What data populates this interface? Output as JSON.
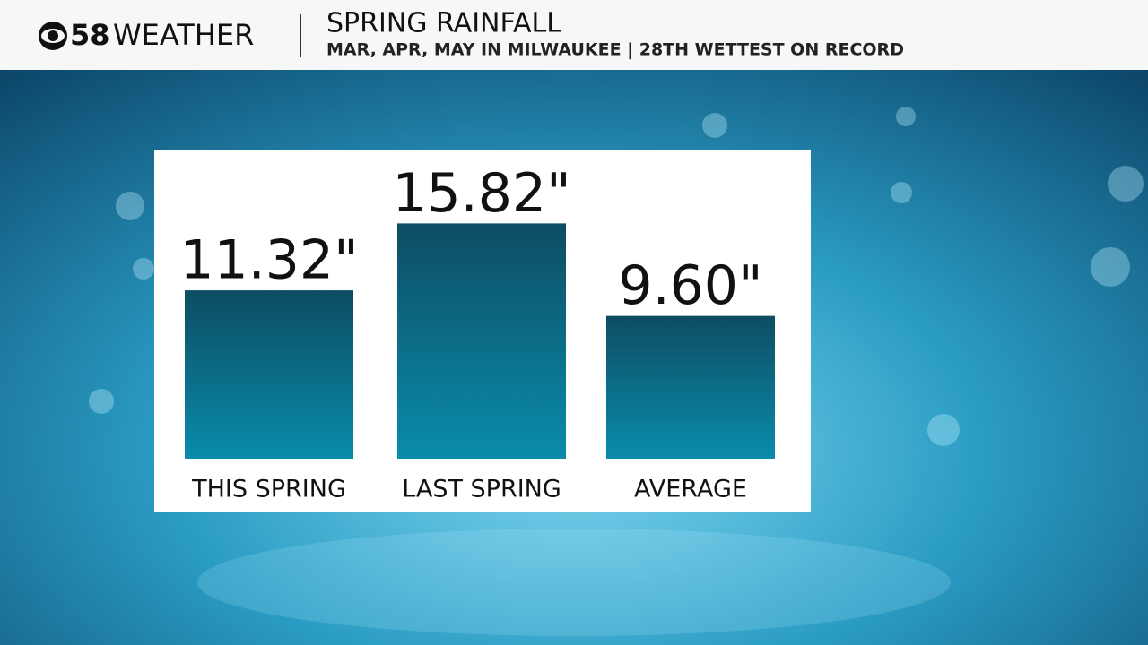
{
  "header": {
    "station": "58",
    "brand": "WEATHER"
  },
  "chart_data": {
    "type": "bar",
    "title": "SPRING RAINFALL",
    "subtitle": "MAR, APR, MAY IN MILWAUKEE | 28TH WETTEST ON RECORD",
    "categories": [
      "THIS SPRING",
      "LAST SPRING",
      "AVERAGE"
    ],
    "values": [
      11.32,
      15.82,
      9.6
    ],
    "value_labels": [
      "11.32\"",
      "15.82\"",
      "9.60\""
    ],
    "color": "#0b6f8c"
  }
}
